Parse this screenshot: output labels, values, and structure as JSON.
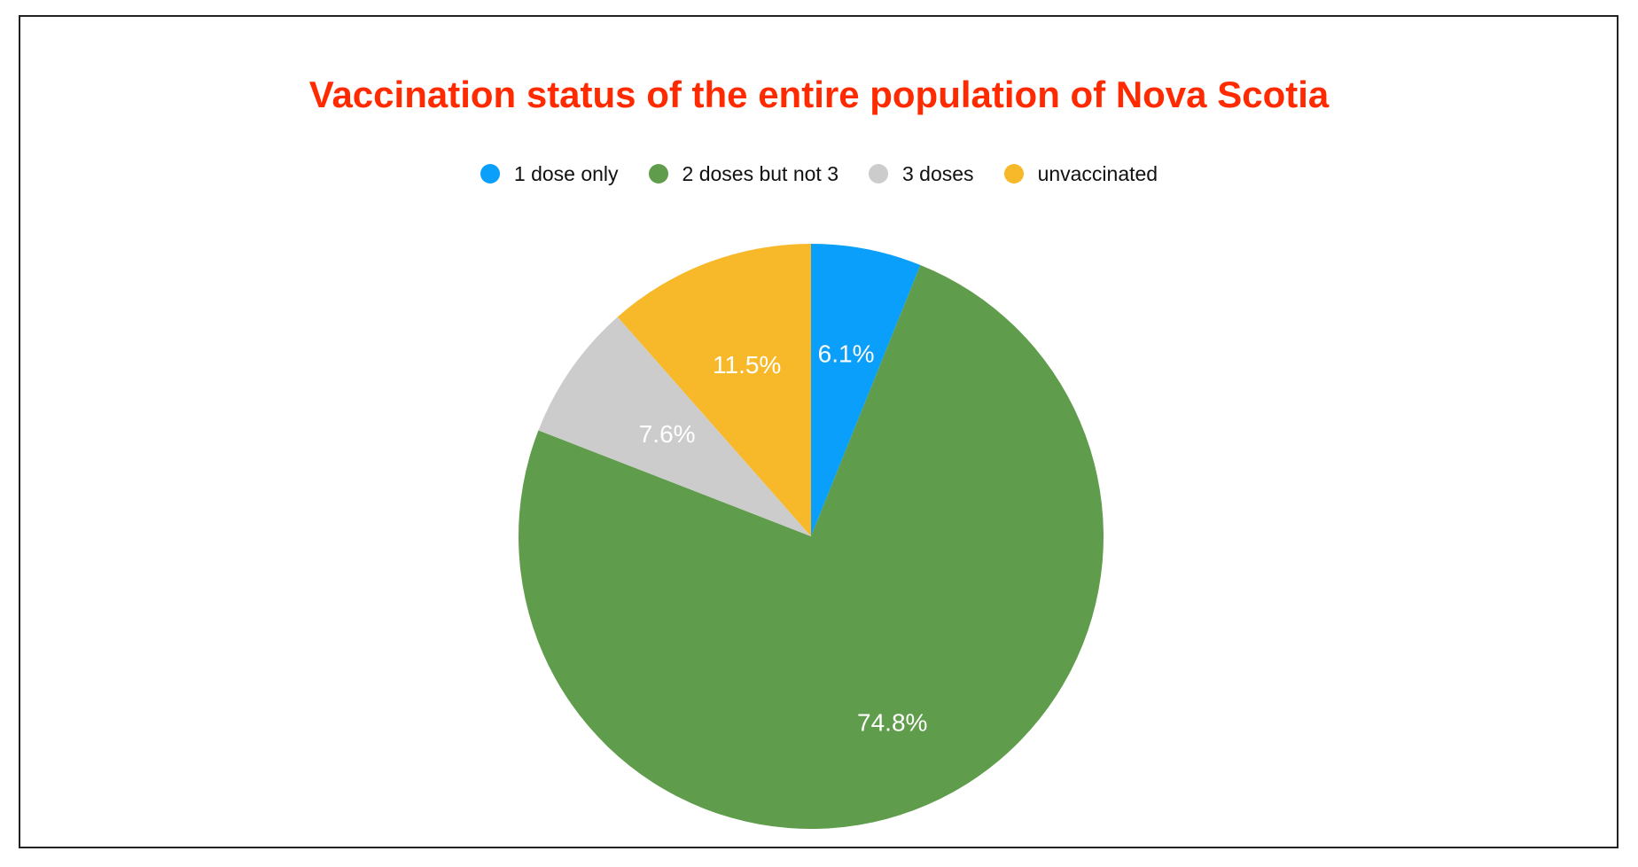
{
  "chart_data": {
    "type": "pie",
    "title": "Vaccination status of the entire population of Nova Scotia",
    "legend_position": "top",
    "slices": [
      {
        "name": "1 dose only",
        "value": 6.1,
        "label": "6.1%",
        "color": "#0a9ffa"
      },
      {
        "name": "2 doses but not 3",
        "value": 74.8,
        "label": "74.8%",
        "color": "#5f9c4b"
      },
      {
        "name": "3 doses",
        "value": 7.6,
        "label": "7.6%",
        "color": "#cccccc"
      },
      {
        "name": "unvaccinated",
        "value": 11.5,
        "label": "11.5%",
        "color": "#f7b92a"
      }
    ]
  }
}
